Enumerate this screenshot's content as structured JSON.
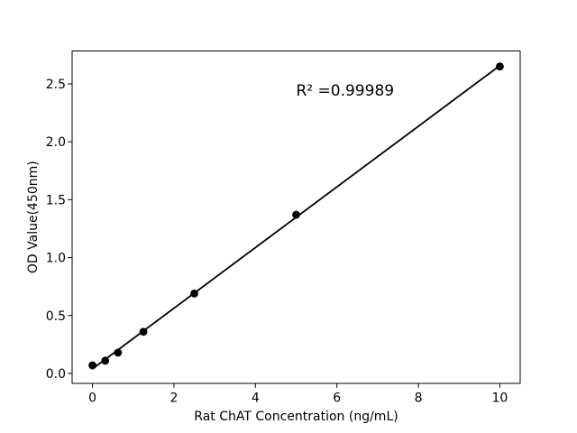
{
  "figure": {
    "background": "#ffffff"
  },
  "chart_data": {
    "type": "scatter",
    "title": "",
    "xlabel": "Rat ChAT Concentration (ng/mL)",
    "ylabel": "OD Value(450nm)",
    "series": [
      {
        "name": "standard-curve-points",
        "x": [
          0,
          0.3125,
          0.625,
          1.25,
          2.5,
          5,
          10
        ],
        "y": [
          0.07,
          0.11,
          0.18,
          0.36,
          0.69,
          1.37,
          2.65
        ]
      }
    ],
    "fit_line": {
      "type": "linear-regression",
      "show": true,
      "x_start": 0,
      "x_end": 10
    },
    "annotation": {
      "text": "R² =0.99989",
      "x": 5,
      "y": 2.4
    },
    "xlim": [
      -0.5,
      10.5
    ],
    "ylim": [
      -0.086,
      2.784
    ],
    "x_ticks": [
      0,
      2,
      4,
      6,
      8,
      10
    ],
    "x_tick_labels": [
      "0",
      "2",
      "4",
      "6",
      "8",
      "10"
    ],
    "y_ticks": [
      0.0,
      0.5,
      1.0,
      1.5,
      2.0,
      2.5
    ],
    "y_tick_labels": [
      "0.0",
      "0.5",
      "1.0",
      "1.5",
      "2.0",
      "2.5"
    ],
    "grid": false,
    "legend": "none",
    "marker_color": "#000000",
    "line_color": "#000000",
    "spine_color": "#000000"
  }
}
